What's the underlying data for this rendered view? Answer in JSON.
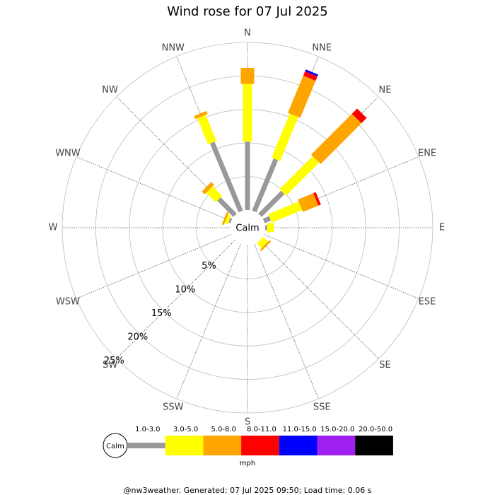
{
  "chart_data": {
    "type": "windrose",
    "title": "Wind rose for 07 Jul 2025",
    "center_label": "Calm",
    "directions": [
      "N",
      "NNE",
      "NE",
      "ENE",
      "E",
      "ESE",
      "SE",
      "SSE",
      "S",
      "SSW",
      "SW",
      "WSW",
      "W",
      "WNW",
      "NW",
      "NNW"
    ],
    "series": [
      {
        "name": "1.0-3.0",
        "color": "#999999",
        "values": [
          10.2,
          8.4,
          4.8,
          1.0,
          0.3,
          0,
          0,
          0,
          0,
          0,
          0,
          0,
          0,
          0.3,
          3.4,
          11.1
        ]
      },
      {
        "name": "3.0-5.0",
        "color": "#ffff00",
        "values": [
          8.6,
          7.1,
          7.0,
          4.9,
          1.0,
          0,
          1.0,
          0,
          0,
          0,
          0,
          0,
          0,
          0.5,
          2.0,
          4.2
        ]
      },
      {
        "name": "5.0-8.0",
        "color": "#ffa500",
        "values": [
          2.4,
          6.0,
          8.6,
          2.5,
          0,
          0,
          0.3,
          0,
          0,
          0,
          0,
          0,
          0,
          0.3,
          0.6,
          0.5
        ]
      },
      {
        "name": "8.0-11.0",
        "color": "#ff0000",
        "values": [
          0,
          0.7,
          1.1,
          0.4,
          0,
          0,
          0,
          0,
          0,
          0,
          0,
          0,
          0,
          0,
          0,
          0
        ]
      },
      {
        "name": "11.0-15.0",
        "color": "#0000ff",
        "values": [
          0,
          0.3,
          0,
          0,
          0,
          0,
          0,
          0,
          0,
          0,
          0,
          0,
          0,
          0,
          0,
          0
        ]
      },
      {
        "name": "15.0-20.0",
        "color": "#a020f0",
        "values": [
          0,
          0,
          0,
          0,
          0,
          0,
          0,
          0,
          0,
          0,
          0,
          0,
          0,
          0,
          0,
          0
        ]
      },
      {
        "name": "20.0-50.0",
        "color": "#000000",
        "values": [
          0,
          0,
          0,
          0,
          0,
          0,
          0,
          0,
          0,
          0,
          0,
          0,
          0,
          0,
          0,
          0
        ]
      }
    ],
    "ylim": [
      0,
      25
    ],
    "yticks": [
      {
        "value": 5,
        "label": "5%"
      },
      {
        "value": 10,
        "label": "10%"
      },
      {
        "value": 15,
        "label": "15%"
      },
      {
        "value": 20,
        "label": "20%"
      },
      {
        "value": 25,
        "label": "25%"
      }
    ],
    "unit_label": "mph",
    "footer": "@nw3weather.  Generated: 07 Jul 2025 09:50; Load time: 0.06 s"
  }
}
